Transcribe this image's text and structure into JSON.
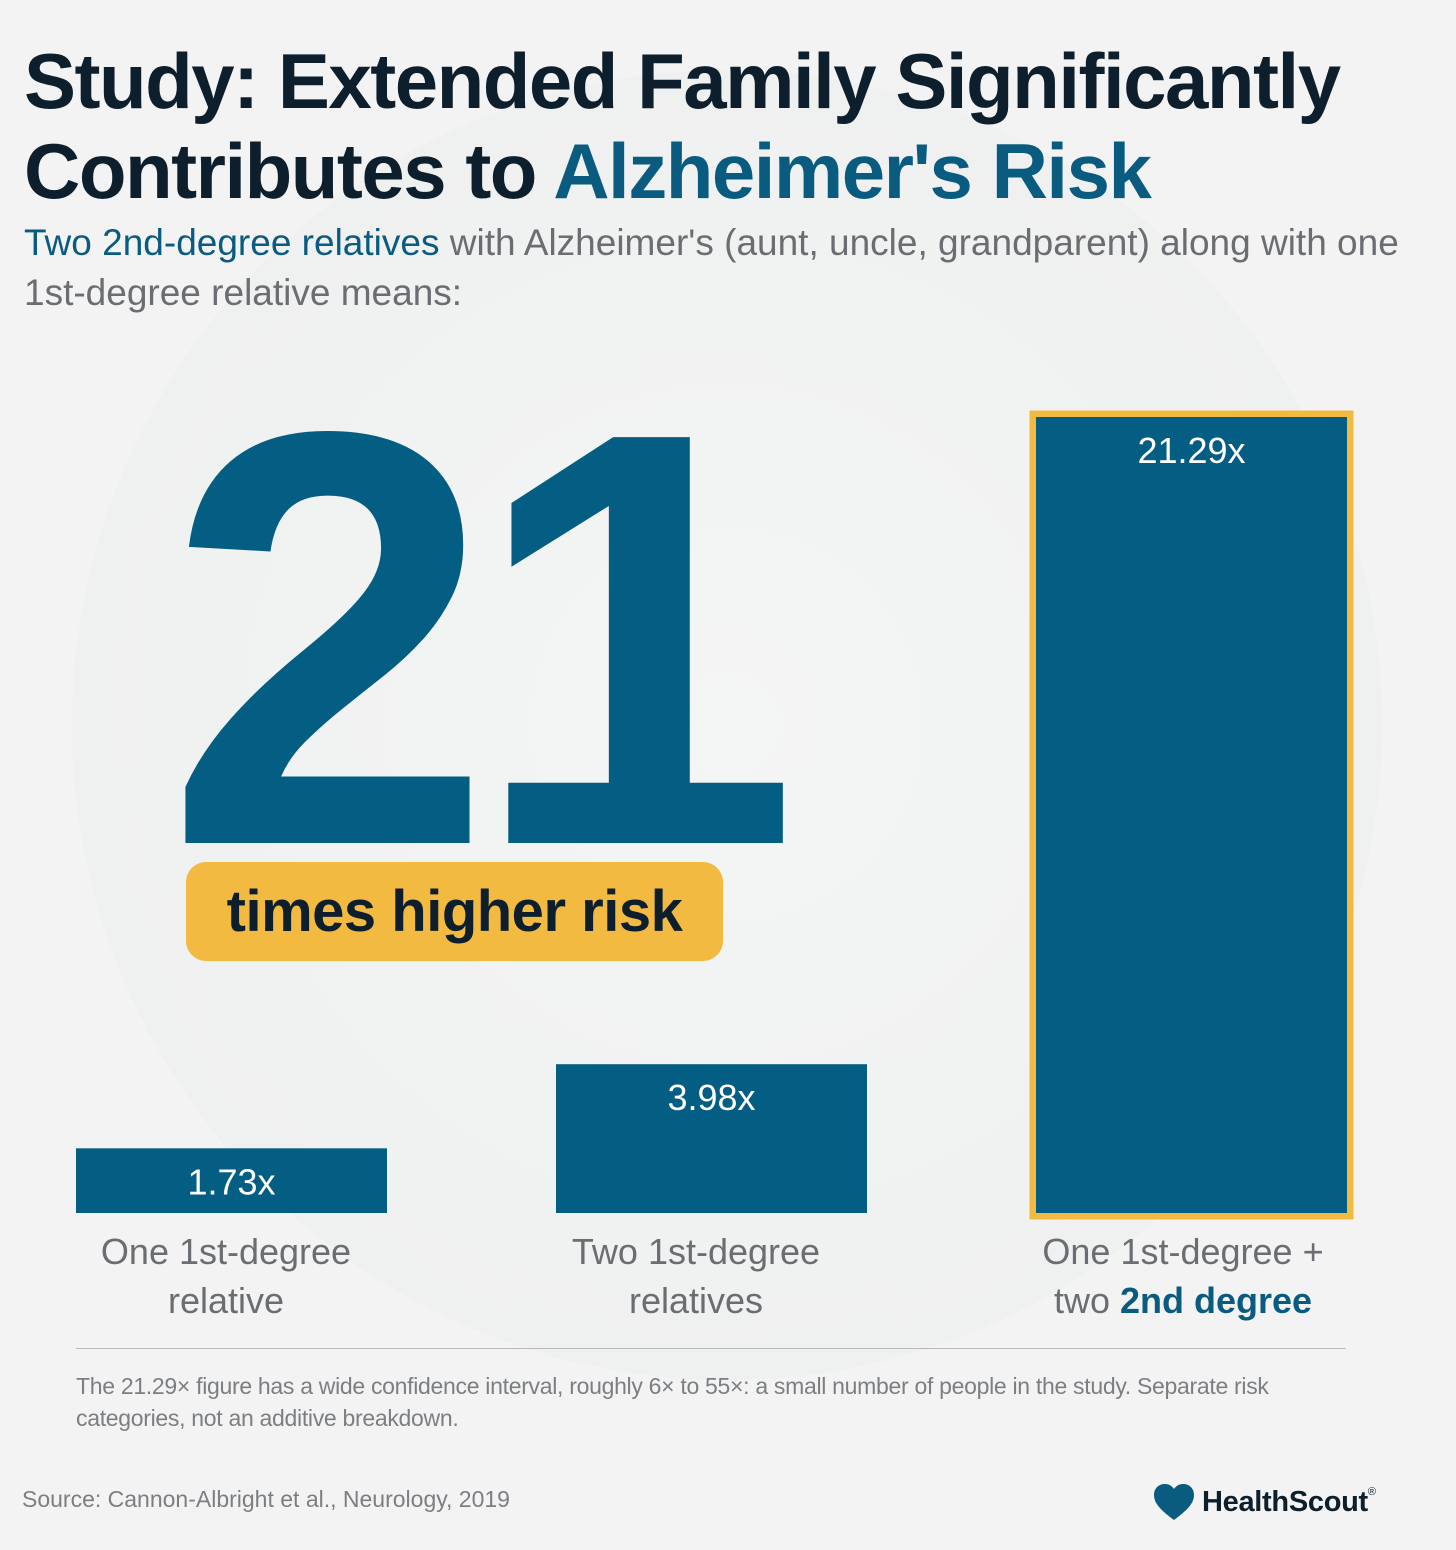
{
  "title": {
    "line1": "Study: Extended Family Significantly",
    "line2_plain": "Contributes to ",
    "line2_highlight": "Alzheimer's Risk"
  },
  "subtitle": {
    "highlight": "Two 2nd-degree relatives",
    "rest": " with Alzheimer's (aunt, uncle, grandparent) along with one 1st-degree relative means:"
  },
  "callout": {
    "number": "21",
    "pill": "times higher risk"
  },
  "chart_data": {
    "type": "bar",
    "categories": [
      "One 1st-degree relative",
      "Two 1st-degree relatives",
      "One 1st-degree + two 2nd degree"
    ],
    "values": [
      1.73,
      3.98,
      21.29
    ],
    "value_labels": [
      "1.73x",
      "3.98x",
      "21.29x"
    ],
    "highlighted_index": 2,
    "title": "",
    "xlabel": "",
    "ylabel": "",
    "ylim": [
      0,
      21.29
    ],
    "grid": false,
    "legend": "none"
  },
  "labels": {
    "cat0_line1": "One 1st-degree",
    "cat0_line2": "relative",
    "cat1_line1": "Two 1st-degree",
    "cat1_line2": "relatives",
    "cat2_line1": "One 1st-degree +",
    "cat2_line2_plain": "two ",
    "cat2_line2_highlight": "2nd degree"
  },
  "footnote": "The 21.29× figure has a wide confidence interval, roughly 6× to 55×: a small number of people in the study. Separate risk categories, not an additive breakdown.",
  "source": "Source: Cannon-Albright et al., Neurology, 2019",
  "brand": {
    "name": "HealthScout",
    "reg": "®",
    "icon": "heart-icon"
  },
  "colors": {
    "bar": "#045d83",
    "highlight_border": "#f3ba41",
    "accent_text": "#0a5b80",
    "title_text": "#0d1f2d",
    "pill": "#f3ba41"
  }
}
